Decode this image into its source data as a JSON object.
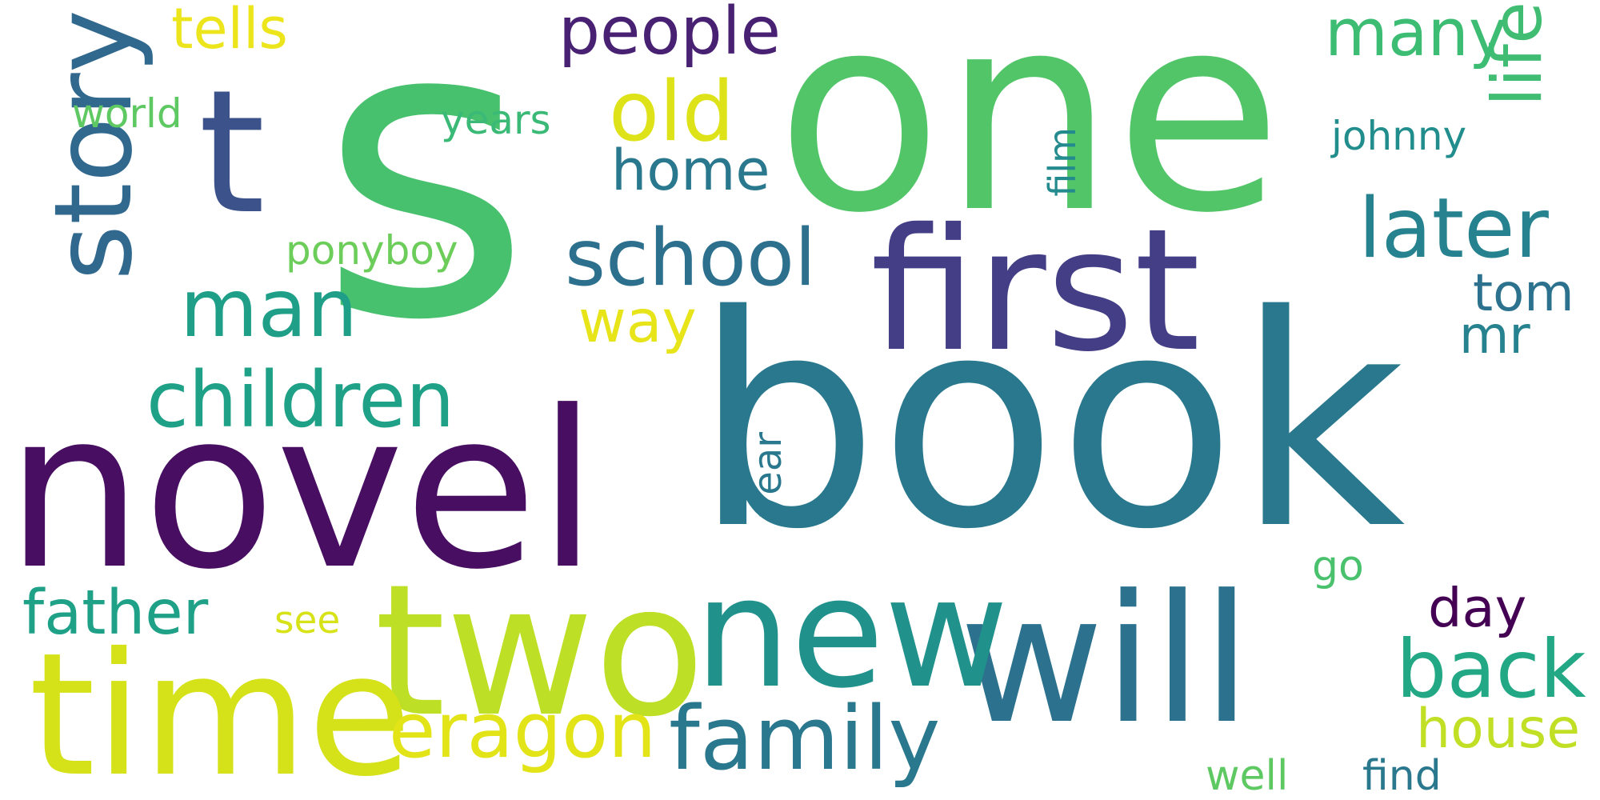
{
  "words": [
    {
      "text": "book",
      "color": "#2a788e",
      "rotate": false
    },
    {
      "text": "s",
      "color": "#48c16e",
      "rotate": false
    },
    {
      "text": "one",
      "color": "#52c569",
      "rotate": false
    },
    {
      "text": "novel",
      "color": "#470e61",
      "rotate": false
    },
    {
      "text": "two",
      "color": "#bddf26",
      "rotate": false
    },
    {
      "text": "time",
      "color": "#d5e21a",
      "rotate": false
    },
    {
      "text": "will",
      "color": "#2c728e",
      "rotate": false
    },
    {
      "text": "first",
      "color": "#433e85",
      "rotate": false
    },
    {
      "text": "t",
      "color": "#3b528b",
      "rotate": false
    },
    {
      "text": "story",
      "color": "#31688e",
      "rotate": true
    },
    {
      "text": "new",
      "color": "#21918c",
      "rotate": false
    },
    {
      "text": "eragon",
      "color": "#e2e418",
      "rotate": false
    },
    {
      "text": "family",
      "color": "#2a788e",
      "rotate": false
    },
    {
      "text": "children",
      "color": "#1fa187",
      "rotate": false
    },
    {
      "text": "man",
      "color": "#1f9f88",
      "rotate": false
    },
    {
      "text": "school",
      "color": "#2d708e",
      "rotate": false
    },
    {
      "text": "old",
      "color": "#dde318",
      "rotate": false
    },
    {
      "text": "people",
      "color": "#482173",
      "rotate": false
    },
    {
      "text": "later",
      "color": "#26828e",
      "rotate": false
    },
    {
      "text": "life",
      "color": "#40bd72",
      "rotate": true
    },
    {
      "text": "many",
      "color": "#3dbc74",
      "rotate": false
    },
    {
      "text": "back",
      "color": "#22a884",
      "rotate": false
    },
    {
      "text": "house",
      "color": "#c0df25",
      "rotate": false
    },
    {
      "text": "father",
      "color": "#1fa188",
      "rotate": false
    },
    {
      "text": "home",
      "color": "#2a788e",
      "rotate": false
    },
    {
      "text": "tells",
      "color": "#ece51b",
      "rotate": false
    },
    {
      "text": "day",
      "color": "#440154",
      "rotate": false
    },
    {
      "text": "tom",
      "color": "#2c728e",
      "rotate": false
    },
    {
      "text": "ponyboy",
      "color": "#6ccd5a",
      "rotate": false
    },
    {
      "text": "way",
      "color": "#e7e419",
      "rotate": false
    },
    {
      "text": "mr",
      "color": "#26828e",
      "rotate": false
    },
    {
      "text": "world",
      "color": "#5ec962",
      "rotate": false
    },
    {
      "text": "years",
      "color": "#3aba76",
      "rotate": false
    },
    {
      "text": "johnny",
      "color": "#228d8d",
      "rotate": false
    },
    {
      "text": "year",
      "color": "#2a788e",
      "rotate": true
    },
    {
      "text": "film",
      "color": "#238a8d",
      "rotate": true
    },
    {
      "text": "see",
      "color": "#d8e219",
      "rotate": false
    },
    {
      "text": "go",
      "color": "#4ac16d",
      "rotate": false
    },
    {
      "text": "well",
      "color": "#5ec962",
      "rotate": false
    },
    {
      "text": "find",
      "color": "#2a788e",
      "rotate": false
    }
  ]
}
